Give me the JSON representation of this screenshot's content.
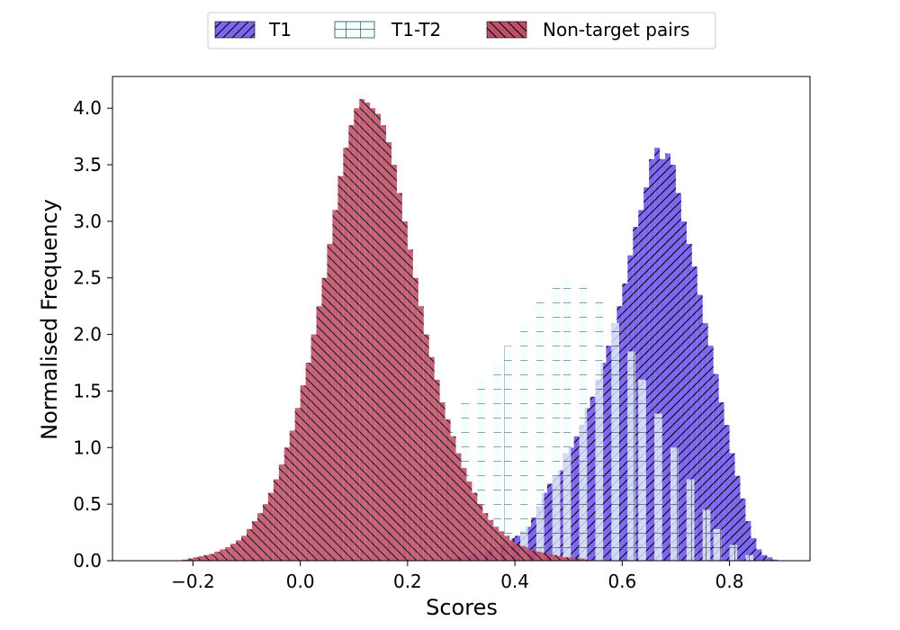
{
  "chart_data": {
    "type": "bar",
    "title": "",
    "xlabel": "Scores",
    "ylabel": "Normalised Frequency",
    "xlim": [
      -0.35,
      0.95
    ],
    "ylim": [
      0,
      4.28
    ],
    "x_ticks": [
      "−0.2",
      "0.0",
      "0.2",
      "0.4",
      "0.6",
      "0.8"
    ],
    "x_tick_values": [
      -0.2,
      0.0,
      0.2,
      0.4,
      0.6,
      0.8
    ],
    "y_ticks": [
      "0.0",
      "0.5",
      "1.0",
      "1.5",
      "2.0",
      "2.5",
      "3.0",
      "3.5",
      "4.0"
    ],
    "y_tick_values": [
      0.0,
      0.5,
      1.0,
      1.5,
      2.0,
      2.5,
      3.0,
      3.5,
      4.0
    ],
    "grid": false,
    "legend_position": "top-center",
    "series": [
      {
        "name": "T1",
        "color": "#7b68ee",
        "hatch": "forward-diagonal",
        "bin_width": 0.01,
        "bins": [
          [
            0.28,
            0.02
          ],
          [
            0.29,
            0.03
          ],
          [
            0.3,
            0.04
          ],
          [
            0.31,
            0.05
          ],
          [
            0.32,
            0.06
          ],
          [
            0.33,
            0.07
          ],
          [
            0.34,
            0.08
          ],
          [
            0.35,
            0.1
          ],
          [
            0.36,
            0.12
          ],
          [
            0.37,
            0.15
          ],
          [
            0.38,
            0.18
          ],
          [
            0.39,
            0.2
          ],
          [
            0.4,
            0.22
          ],
          [
            0.41,
            0.26
          ],
          [
            0.42,
            0.3
          ],
          [
            0.43,
            0.38
          ],
          [
            0.44,
            0.48
          ],
          [
            0.45,
            0.6
          ],
          [
            0.46,
            0.68
          ],
          [
            0.47,
            0.75
          ],
          [
            0.48,
            0.8
          ],
          [
            0.49,
            0.95
          ],
          [
            0.5,
            1.0
          ],
          [
            0.51,
            1.1
          ],
          [
            0.52,
            1.2
          ],
          [
            0.53,
            1.35
          ],
          [
            0.54,
            1.45
          ],
          [
            0.55,
            1.6
          ],
          [
            0.56,
            1.75
          ],
          [
            0.57,
            1.9
          ],
          [
            0.58,
            2.1
          ],
          [
            0.59,
            2.25
          ],
          [
            0.6,
            2.45
          ],
          [
            0.61,
            2.7
          ],
          [
            0.62,
            2.95
          ],
          [
            0.63,
            3.1
          ],
          [
            0.64,
            3.3
          ],
          [
            0.65,
            3.55
          ],
          [
            0.66,
            3.65
          ],
          [
            0.67,
            3.55
          ],
          [
            0.68,
            3.6
          ],
          [
            0.69,
            3.5
          ],
          [
            0.7,
            3.25
          ],
          [
            0.71,
            3.0
          ],
          [
            0.72,
            2.8
          ],
          [
            0.73,
            2.6
          ],
          [
            0.74,
            2.35
          ],
          [
            0.75,
            2.1
          ],
          [
            0.76,
            1.9
          ],
          [
            0.77,
            1.65
          ],
          [
            0.78,
            1.4
          ],
          [
            0.79,
            1.2
          ],
          [
            0.8,
            0.95
          ],
          [
            0.81,
            0.75
          ],
          [
            0.82,
            0.55
          ],
          [
            0.83,
            0.35
          ],
          [
            0.84,
            0.2
          ],
          [
            0.85,
            0.1
          ],
          [
            0.86,
            0.05
          ],
          [
            0.87,
            0.03
          ],
          [
            0.88,
            0.01
          ]
        ]
      },
      {
        "name": "T1-T2",
        "color": "#f0ffff",
        "hatch": "grid",
        "bin_width": 0.0145,
        "bins": [
          [
            0.13,
            0.12
          ],
          [
            0.16,
            0.28
          ],
          [
            0.19,
            0.55
          ],
          [
            0.22,
            0.85
          ],
          [
            0.25,
            1.0
          ],
          [
            0.27,
            1.15
          ],
          [
            0.3,
            1.4
          ],
          [
            0.33,
            1.6
          ],
          [
            0.36,
            1.75
          ],
          [
            0.38,
            1.9
          ],
          [
            0.41,
            2.1
          ],
          [
            0.44,
            2.3
          ],
          [
            0.47,
            2.45
          ],
          [
            0.49,
            2.5
          ],
          [
            0.52,
            2.45
          ],
          [
            0.55,
            2.3
          ],
          [
            0.58,
            2.1
          ],
          [
            0.61,
            1.85
          ],
          [
            0.63,
            1.6
          ],
          [
            0.66,
            1.3
          ],
          [
            0.69,
            1.0
          ],
          [
            0.72,
            0.72
          ],
          [
            0.75,
            0.45
          ],
          [
            0.77,
            0.28
          ],
          [
            0.8,
            0.14
          ],
          [
            0.83,
            0.05
          ]
        ]
      },
      {
        "name": "Non-target pairs",
        "color": "#c0506a",
        "hatch": "back-diagonal",
        "bin_width": 0.01,
        "bins": [
          [
            -0.22,
            0.01
          ],
          [
            -0.21,
            0.02
          ],
          [
            -0.2,
            0.03
          ],
          [
            -0.19,
            0.04
          ],
          [
            -0.18,
            0.05
          ],
          [
            -0.17,
            0.06
          ],
          [
            -0.16,
            0.08
          ],
          [
            -0.15,
            0.1
          ],
          [
            -0.14,
            0.12
          ],
          [
            -0.13,
            0.15
          ],
          [
            -0.12,
            0.18
          ],
          [
            -0.11,
            0.22
          ],
          [
            -0.1,
            0.28
          ],
          [
            -0.09,
            0.35
          ],
          [
            -0.08,
            0.42
          ],
          [
            -0.07,
            0.5
          ],
          [
            -0.06,
            0.6
          ],
          [
            -0.05,
            0.72
          ],
          [
            -0.04,
            0.85
          ],
          [
            -0.03,
            1.0
          ],
          [
            -0.02,
            1.15
          ],
          [
            -0.01,
            1.35
          ],
          [
            0.0,
            1.55
          ],
          [
            0.01,
            1.75
          ],
          [
            0.02,
            2.0
          ],
          [
            0.03,
            2.25
          ],
          [
            0.04,
            2.5
          ],
          [
            0.05,
            2.8
          ],
          [
            0.06,
            3.1
          ],
          [
            0.07,
            3.4
          ],
          [
            0.08,
            3.65
          ],
          [
            0.09,
            3.85
          ],
          [
            0.1,
            4.0
          ],
          [
            0.11,
            4.08
          ],
          [
            0.12,
            4.05
          ],
          [
            0.13,
            4.0
          ],
          [
            0.14,
            3.95
          ],
          [
            0.15,
            3.85
          ],
          [
            0.16,
            3.7
          ],
          [
            0.17,
            3.5
          ],
          [
            0.18,
            3.25
          ],
          [
            0.19,
            3.0
          ],
          [
            0.2,
            2.75
          ],
          [
            0.21,
            2.5
          ],
          [
            0.22,
            2.25
          ],
          [
            0.23,
            2.0
          ],
          [
            0.24,
            1.8
          ],
          [
            0.25,
            1.6
          ],
          [
            0.26,
            1.4
          ],
          [
            0.27,
            1.25
          ],
          [
            0.28,
            1.1
          ],
          [
            0.29,
            0.95
          ],
          [
            0.3,
            0.82
          ],
          [
            0.31,
            0.7
          ],
          [
            0.32,
            0.6
          ],
          [
            0.33,
            0.5
          ],
          [
            0.34,
            0.42
          ],
          [
            0.35,
            0.36
          ],
          [
            0.36,
            0.3
          ],
          [
            0.37,
            0.26
          ],
          [
            0.38,
            0.22
          ],
          [
            0.39,
            0.18
          ],
          [
            0.4,
            0.15
          ],
          [
            0.41,
            0.13
          ],
          [
            0.42,
            0.11
          ],
          [
            0.43,
            0.09
          ],
          [
            0.44,
            0.08
          ],
          [
            0.45,
            0.07
          ],
          [
            0.46,
            0.06
          ],
          [
            0.47,
            0.05
          ],
          [
            0.48,
            0.04
          ],
          [
            0.49,
            0.03
          ],
          [
            0.5,
            0.03
          ],
          [
            0.51,
            0.02
          ],
          [
            0.52,
            0.02
          ],
          [
            0.53,
            0.01
          ],
          [
            0.54,
            0.01
          ]
        ]
      }
    ]
  }
}
